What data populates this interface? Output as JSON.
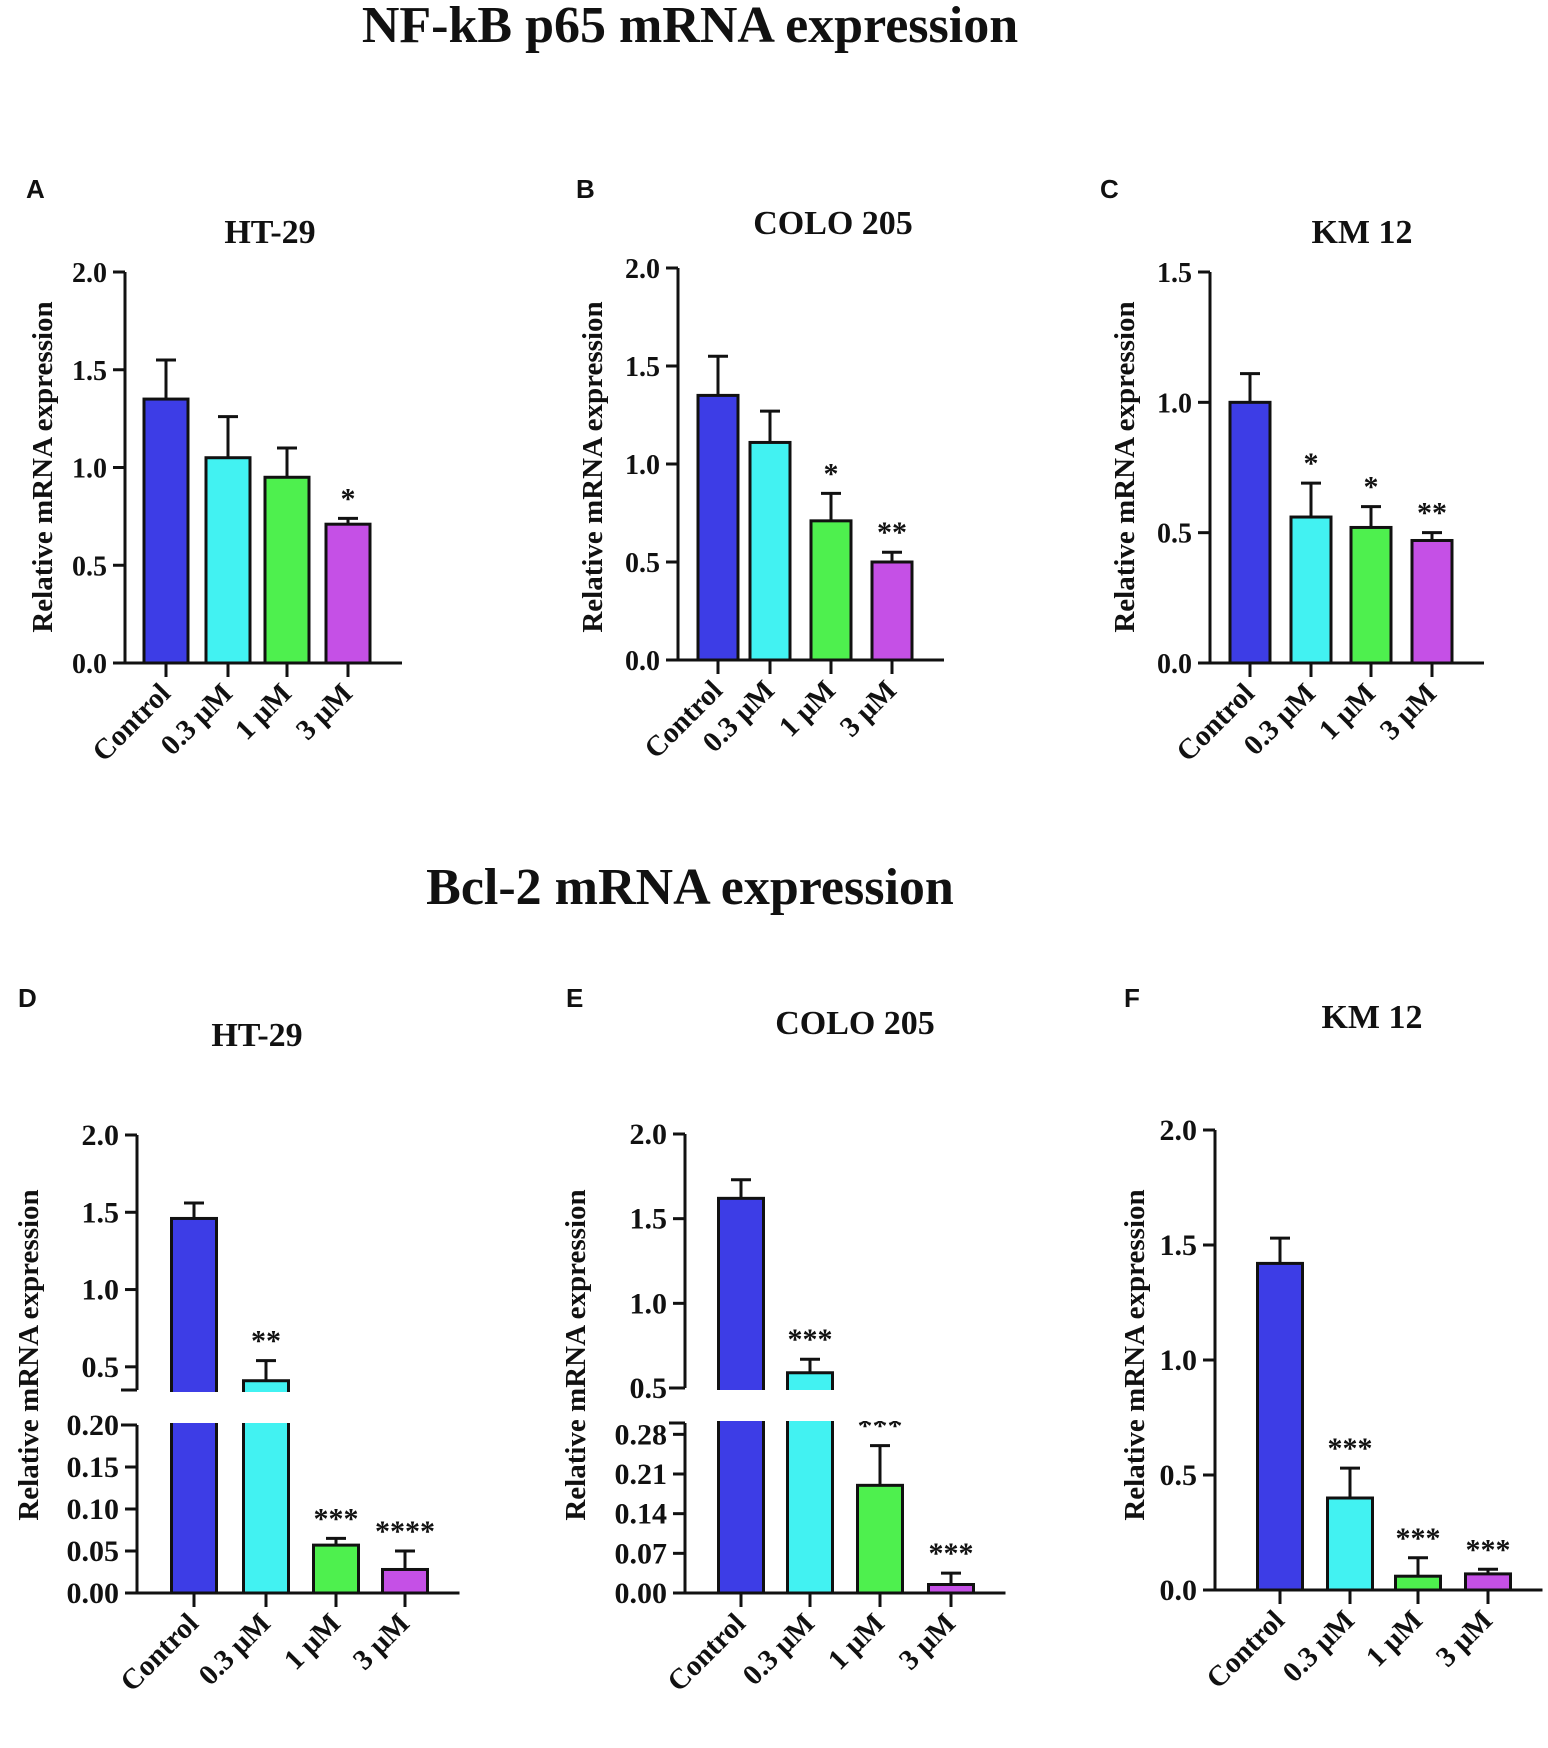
{
  "headings": {
    "nfkb": "NF-kB p65 mRNA expression",
    "bcl2": "Bcl-2 mRNA expression"
  },
  "colors": {
    "control": "#3d3de6",
    "dose_0_3": "#42f2f2",
    "dose_1": "#4ef04e",
    "dose_3": "#c550e6",
    "axis": "#111111"
  },
  "chart_data": [
    {
      "panel": "A",
      "type": "bar",
      "title": "HT-29",
      "ylabel": "Relative mRNA expression",
      "categories": [
        "Control",
        "0.3 μM",
        "1 μM",
        "3 μM"
      ],
      "values": [
        1.35,
        1.05,
        0.95,
        0.71
      ],
      "errors": [
        0.2,
        0.21,
        0.15,
        0.03
      ],
      "significance": [
        "",
        "",
        "",
        "*"
      ],
      "ylim": [
        0,
        2.0
      ],
      "yticks": [
        "0.0",
        "0.5",
        "1.0",
        "1.5",
        "2.0"
      ]
    },
    {
      "panel": "B",
      "type": "bar",
      "title": "COLO 205",
      "ylabel": "Relative mRNA expression",
      "categories": [
        "Control",
        "0.3 μM",
        "1 μM",
        "3 μM"
      ],
      "values": [
        1.35,
        1.11,
        0.71,
        0.5
      ],
      "errors": [
        0.2,
        0.16,
        0.14,
        0.05
      ],
      "significance": [
        "",
        "",
        "*",
        "**"
      ],
      "ylim": [
        0,
        2.0
      ],
      "yticks": [
        "0.0",
        "0.5",
        "1.0",
        "1.5",
        "2.0"
      ]
    },
    {
      "panel": "C",
      "type": "bar",
      "title": "KM 12",
      "ylabel": "Relative mRNA expression",
      "categories": [
        "Control",
        "0.3 μM",
        "1 μM",
        "3 μM"
      ],
      "values": [
        1.0,
        0.56,
        0.52,
        0.47
      ],
      "errors": [
        0.11,
        0.13,
        0.08,
        0.03
      ],
      "significance": [
        "",
        "*",
        "*",
        "**"
      ],
      "ylim": [
        0,
        1.5
      ],
      "yticks": [
        "0.0",
        "0.5",
        "1.0",
        "1.5"
      ]
    },
    {
      "panel": "D",
      "type": "bar",
      "title": "HT-29",
      "ylabel": "Relative mRNA expression",
      "categories": [
        "Control",
        "0.3 μM",
        "1 μM",
        "3 μM"
      ],
      "values": [
        1.46,
        0.41,
        0.057,
        0.028
      ],
      "errors": [
        0.1,
        0.13,
        0.008,
        0.022
      ],
      "significance": [
        "",
        "**",
        "***",
        "****"
      ],
      "axis_break": {
        "lower": [
          0,
          0.2
        ],
        "upper": [
          0.35,
          2.0
        ]
      },
      "yticks_lower": [
        "0.00",
        "0.05",
        "0.10",
        "0.15",
        "0.20"
      ],
      "yticks_upper": [
        "0.5",
        "1.0",
        "1.5",
        "2.0"
      ]
    },
    {
      "panel": "E",
      "type": "bar",
      "title": "COLO 205",
      "ylabel": "Relative mRNA expression",
      "categories": [
        "Control",
        "0.3 μM",
        "1 μM",
        "3 μM"
      ],
      "values": [
        1.62,
        0.59,
        0.19,
        0.015
      ],
      "errors": [
        0.11,
        0.08,
        0.07,
        0.02
      ],
      "significance": [
        "",
        "***",
        "***",
        "***"
      ],
      "axis_break": {
        "lower": [
          0,
          0.3
        ],
        "upper": [
          0.5,
          2.0
        ]
      },
      "yticks_lower": [
        "0.00",
        "0.07",
        "0.14",
        "0.21",
        "0.28"
      ],
      "yticks_upper": [
        "0.5",
        "1.0",
        "1.5",
        "2.0"
      ]
    },
    {
      "panel": "F",
      "type": "bar",
      "title": "KM 12",
      "ylabel": "Relative mRNA expression",
      "categories": [
        "Control",
        "0.3 μM",
        "1 μM",
        "3 μM"
      ],
      "values": [
        1.42,
        0.4,
        0.06,
        0.07
      ],
      "errors": [
        0.11,
        0.13,
        0.08,
        0.02
      ],
      "significance": [
        "",
        "***",
        "***",
        "***"
      ],
      "ylim": [
        0,
        2.0
      ],
      "yticks": [
        "0.0",
        "0.5",
        "1.0",
        "1.5",
        "2.0"
      ]
    }
  ]
}
